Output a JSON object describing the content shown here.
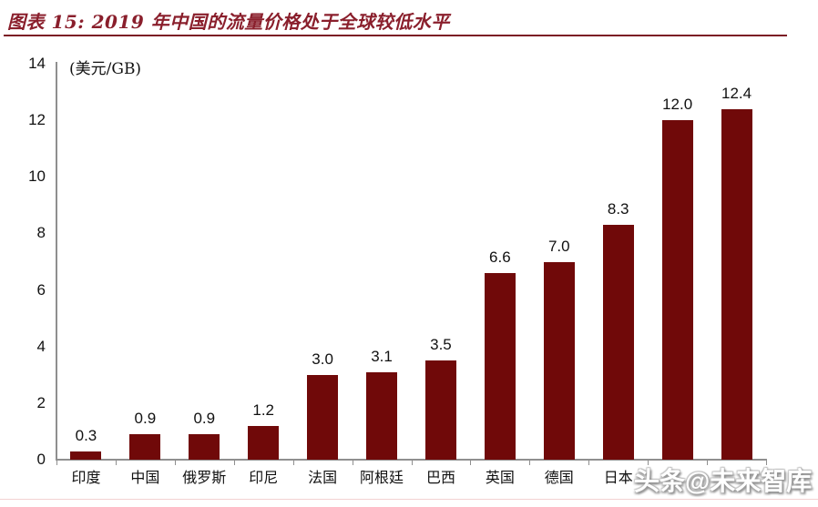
{
  "header": {
    "title": "图表 15: 2019 年中国的流量价格处于全球较低水平"
  },
  "watermark": {
    "text": "头条@未来智库"
  },
  "chart_data": {
    "type": "bar",
    "title": "图表 15: 2019 年中国的流量价格处于全球较低水平",
    "unit_label": "(美元/GB)",
    "xlabel": "",
    "ylabel": "美元/GB",
    "categories": [
      "印度",
      "中国",
      "俄罗斯",
      "印尼",
      "法国",
      "阿根廷",
      "巴西",
      "英国",
      "德国",
      "日本",
      "",
      ""
    ],
    "values": [
      0.3,
      0.9,
      0.9,
      1.2,
      3.0,
      3.1,
      3.5,
      6.6,
      7.0,
      8.3,
      12.0,
      12.4
    ],
    "data_labels": [
      "0.3",
      "0.9",
      "0.9",
      "1.2",
      "3.0",
      "3.1",
      "3.5",
      "6.6",
      "7.0",
      "8.3",
      "12.0",
      "12.4"
    ],
    "ylim": [
      0,
      14
    ],
    "y_ticks": [
      0,
      2,
      4,
      6,
      8,
      10,
      12,
      14
    ],
    "grid": false,
    "legend": false,
    "bar_color": "#700909",
    "note_last_two_labels": "hidden behind watermark"
  },
  "colors": {
    "title": "#8A1F2C",
    "title_underline": "#7C1A24",
    "bar": "#700909",
    "axis": "#8F8F8F",
    "text": "#111111",
    "bottom_divider": "#F3D2D2",
    "watermark_fill": "#FFFFFF"
  }
}
